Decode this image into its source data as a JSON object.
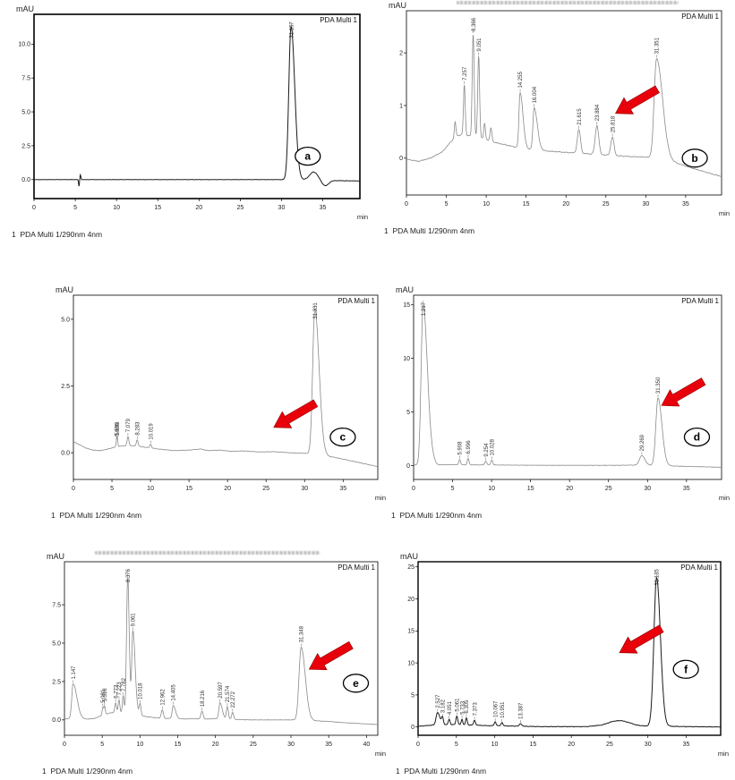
{
  "labels": {
    "y_unit": "mAU",
    "x_unit": "min",
    "detector": "PDA Multi 1",
    "channel_footer": "1  PDA Multi 1/290nm 4nm"
  },
  "colors": {
    "arrow": "#e8000b",
    "arrow_edge": "#8c0000",
    "frame": "#000000",
    "trace_dark": "#1a1a1a",
    "trace_gray": "#8a8a8a"
  },
  "chart_data": [
    {
      "letter": "a",
      "type": "line",
      "title": "",
      "ylabel": "mAU",
      "xlabel": "min",
      "detector": "PDA Multi 1",
      "footer": "1  PDA Multi 1/290nm 4nm",
      "xlim": [
        0,
        39.5
      ],
      "ylim": [
        -1.4,
        12.2
      ],
      "xticks": [
        0,
        5,
        10,
        15,
        20,
        25,
        30,
        35
      ],
      "xtick_labels": [
        "0",
        "5",
        "10",
        "15",
        "20",
        "25",
        "30",
        "35"
      ],
      "yticks": [
        0,
        2.5,
        5,
        7.5,
        10
      ],
      "ytick_labels": [
        "0.0",
        "2.5",
        "5.0",
        "7.5",
        "10.0"
      ],
      "grid": false,
      "trace_color": "#1a1a1a",
      "trace_width": 1.0,
      "frame_width": 1.6,
      "noise": 0.015,
      "baseline": [
        [
          0,
          0
        ],
        [
          30.2,
          0
        ],
        [
          33,
          -0.03
        ],
        [
          36,
          -0.07
        ],
        [
          39.5,
          -0.1
        ]
      ],
      "peaks": [
        {
          "t": 5.45,
          "h": -0.5,
          "w": 0.05
        },
        {
          "t": 5.62,
          "h": 0.35,
          "w": 0.06
        },
        {
          "t": 31.157,
          "h": 11.3,
          "wl": 0.27,
          "wr": 0.45,
          "label": "31.157"
        },
        {
          "t": 33.9,
          "h": 0.6,
          "w": 0.5
        },
        {
          "t": 35.3,
          "h": -0.4,
          "w": 0.4
        }
      ],
      "arrow": null,
      "letter_pos": [
        0.84,
        0.77
      ],
      "blurred_title": false
    },
    {
      "letter": "b",
      "type": "line",
      "title": "",
      "ylabel": "mAU",
      "xlabel": "min",
      "detector": "PDA Multi 1",
      "footer": "1  PDA Multi 1/290nm 4nm",
      "xlim": [
        0,
        39.5
      ],
      "ylim": [
        -0.7,
        2.8
      ],
      "xticks": [
        0,
        5,
        10,
        15,
        20,
        25,
        30,
        35
      ],
      "xtick_labels": [
        "0",
        "5",
        "10",
        "15",
        "20",
        "25",
        "30",
        "35"
      ],
      "yticks": [
        0,
        1,
        2
      ],
      "ytick_labels": [
        "0",
        "1",
        "2"
      ],
      "grid": false,
      "trace_color": "#8a8a8a",
      "trace_width": 0.8,
      "frame_width": 0.8,
      "noise": 0.01,
      "baseline": [
        [
          0,
          -0.02
        ],
        [
          1.5,
          -0.06
        ],
        [
          3,
          0
        ],
        [
          4.5,
          0.12
        ],
        [
          5.5,
          0.3
        ],
        [
          6.3,
          0.42
        ],
        [
          7,
          0.45
        ],
        [
          8,
          0.42
        ],
        [
          9.5,
          0.38
        ],
        [
          11,
          0.3
        ],
        [
          12.5,
          0.25
        ],
        [
          14,
          0.2
        ],
        [
          16,
          0.16
        ],
        [
          18,
          0.13
        ],
        [
          20,
          0.11
        ],
        [
          22,
          0.09
        ],
        [
          24,
          0.07
        ],
        [
          26,
          0.05
        ],
        [
          28,
          0.03
        ],
        [
          30,
          0.02
        ],
        [
          32,
          -0.02
        ],
        [
          34,
          -0.1
        ],
        [
          36,
          -0.2
        ],
        [
          39.5,
          -0.35
        ]
      ],
      "peaks": [
        {
          "t": 6.1,
          "h": 0.3,
          "w": 0.1
        },
        {
          "t": 7.257,
          "h": 0.95,
          "w": 0.11,
          "label": "7.257"
        },
        {
          "t": 8.366,
          "h": 1.95,
          "w": 0.12,
          "label": "8.366"
        },
        {
          "t": 9.051,
          "h": 1.55,
          "w": 0.12,
          "label": "9.051"
        },
        {
          "t": 9.8,
          "h": 0.3,
          "w": 0.1
        },
        {
          "t": 10.6,
          "h": 0.25,
          "w": 0.12
        },
        {
          "t": 14.255,
          "h": 1.05,
          "wl": 0.15,
          "wr": 0.35,
          "label": "14.255"
        },
        {
          "t": 16.004,
          "h": 0.8,
          "wl": 0.15,
          "wr": 0.4,
          "label": "16.004"
        },
        {
          "t": 21.615,
          "h": 0.45,
          "w": 0.2,
          "label": "21.615"
        },
        {
          "t": 23.884,
          "h": 0.55,
          "w": 0.22,
          "label": "23.884"
        },
        {
          "t": 25.818,
          "h": 0.35,
          "w": 0.2,
          "label": "25.818"
        },
        {
          "t": 31.351,
          "h": 1.9,
          "wl": 0.3,
          "wr": 0.75,
          "label": "31.351"
        }
      ],
      "arrow": {
        "tip_t": 26.2,
        "tip_val": 0.85,
        "angle_deg": 150
      },
      "letter_pos": [
        0.915,
        0.8
      ],
      "blurred_title": true
    },
    {
      "letter": "c",
      "type": "line",
      "title": "",
      "ylabel": "mAU",
      "xlabel": "min",
      "detector": "PDA Multi 1",
      "footer": "1  PDA Multi 1/290nm 4nm",
      "xlim": [
        0,
        39.5
      ],
      "ylim": [
        -1.0,
        5.9
      ],
      "xticks": [
        0,
        5,
        10,
        15,
        20,
        25,
        30,
        35
      ],
      "xtick_labels": [
        "0",
        "5",
        "10",
        "15",
        "20",
        "25",
        "30",
        "35"
      ],
      "yticks": [
        0,
        2.5,
        5
      ],
      "ytick_labels": [
        "0.0",
        "2.5",
        "5.0"
      ],
      "grid": false,
      "trace_color": "#8a8a8a",
      "trace_width": 0.8,
      "frame_width": 0.8,
      "noise": 0.01,
      "baseline": [
        [
          0,
          0.42
        ],
        [
          0.8,
          0.3
        ],
        [
          1.6,
          0.18
        ],
        [
          2.5,
          0.1
        ],
        [
          3.5,
          0.08
        ],
        [
          4.5,
          0.14
        ],
        [
          5.5,
          0.22
        ],
        [
          6.5,
          0.26
        ],
        [
          7.5,
          0.27
        ],
        [
          8.5,
          0.24
        ],
        [
          9.5,
          0.2
        ],
        [
          11,
          0.14
        ],
        [
          13,
          0.08
        ],
        [
          15,
          0.1
        ],
        [
          16.5,
          0.14
        ],
        [
          17.5,
          0.08
        ],
        [
          19,
          0.1
        ],
        [
          20.5,
          0.05
        ],
        [
          22,
          0.07
        ],
        [
          24,
          0.03
        ],
        [
          26,
          0.04
        ],
        [
          28,
          0.0
        ],
        [
          30,
          -0.02
        ],
        [
          32,
          -0.08
        ],
        [
          34,
          -0.18
        ],
        [
          36,
          -0.3
        ],
        [
          39.5,
          -0.52
        ]
      ],
      "peaks": [
        {
          "t": 5.606,
          "h": 0.22,
          "w": 0.07,
          "label": "5.606"
        },
        {
          "t": 5.698,
          "h": 0.26,
          "w": 0.07,
          "label": "5.698"
        },
        {
          "t": 7.079,
          "h": 0.34,
          "w": 0.11,
          "label": "7.079"
        },
        {
          "t": 8.283,
          "h": 0.24,
          "w": 0.11,
          "label": "8.283"
        },
        {
          "t": 10.019,
          "h": 0.14,
          "w": 0.11,
          "label": "10.019"
        },
        {
          "t": 31.331,
          "h": 5.45,
          "wl": 0.28,
          "wr": 0.55,
          "label": "31.331"
        }
      ],
      "arrow": {
        "tip_t": 26.0,
        "tip_val": 0.95,
        "angle_deg": 150
      },
      "letter_pos": [
        0.885,
        0.77
      ],
      "blurred_title": false
    },
    {
      "letter": "d",
      "type": "line",
      "title": "",
      "ylabel": "mAU",
      "xlabel": "min",
      "detector": "PDA Multi 1",
      "footer": "1  PDA Multi 1/290nm 4nm",
      "xlim": [
        0,
        39.5
      ],
      "ylim": [
        -1.3,
        15.9
      ],
      "xticks": [
        0,
        5,
        10,
        15,
        20,
        25,
        30,
        35
      ],
      "xtick_labels": [
        "0",
        "5",
        "10",
        "15",
        "20",
        "25",
        "30",
        "35"
      ],
      "yticks": [
        0,
        5,
        10,
        15
      ],
      "ytick_labels": [
        "0",
        "5",
        "10",
        "15"
      ],
      "grid": false,
      "trace_color": "#8a8a8a",
      "trace_width": 0.8,
      "frame_width": 0.8,
      "noise": 0.02,
      "baseline": [
        [
          0,
          0.05
        ],
        [
          3,
          0.06
        ],
        [
          5,
          0.08
        ],
        [
          8,
          0.06
        ],
        [
          10,
          0.05
        ],
        [
          14,
          0.03
        ],
        [
          18,
          0.02
        ],
        [
          22,
          0.02
        ],
        [
          26,
          0.02
        ],
        [
          28,
          0.04
        ],
        [
          30,
          0.02
        ],
        [
          32,
          -0.02
        ],
        [
          34,
          -0.06
        ],
        [
          36,
          -0.1
        ],
        [
          39.5,
          -0.16
        ]
      ],
      "peaks": [
        {
          "t": 1.217,
          "h": 15.0,
          "wl": 0.25,
          "wr": 0.55,
          "label": "1.217"
        },
        {
          "t": 2.4,
          "h": 0.3,
          "w": 0.3
        },
        {
          "t": 5.908,
          "h": 0.5,
          "w": 0.11,
          "label": "5.908"
        },
        {
          "t": 6.996,
          "h": 0.6,
          "w": 0.11,
          "label": "6.996"
        },
        {
          "t": 9.254,
          "h": 0.35,
          "w": 0.13,
          "label": "9.254"
        },
        {
          "t": 10.028,
          "h": 0.45,
          "w": 0.12,
          "label": "10.028"
        },
        {
          "t": 29.269,
          "h": 0.9,
          "wl": 0.3,
          "wr": 0.4,
          "label": "29.269"
        },
        {
          "t": 31.35,
          "h": 6.3,
          "wl": 0.28,
          "wr": 0.5,
          "label": "31.350"
        }
      ],
      "arrow": {
        "tip_t": 31.8,
        "tip_val": 5.6,
        "angle_deg": 150
      },
      "letter_pos": [
        0.92,
        0.77
      ],
      "blurred_title": false
    },
    {
      "letter": "e",
      "type": "line",
      "title": "",
      "ylabel": "mAU",
      "xlabel": "min",
      "detector": "PDA Multi 1",
      "footer": "1  PDA Multi 1/290nm 4nm",
      "xlim": [
        0,
        41.5
      ],
      "ylim": [
        -1.0,
        10.3
      ],
      "xticks": [
        0,
        5,
        10,
        15,
        20,
        25,
        30,
        35,
        40
      ],
      "xtick_labels": [
        "0",
        "5",
        "10",
        "15",
        "20",
        "25",
        "30",
        "35",
        "40"
      ],
      "yticks": [
        0,
        2.5,
        5,
        7.5
      ],
      "ytick_labels": [
        "0.0",
        "2.5",
        "5.0",
        "7.5"
      ],
      "grid": false,
      "trace_color": "#8a8a8a",
      "trace_width": 0.8,
      "frame_width": 0.8,
      "noise": 0.012,
      "baseline": [
        [
          0,
          0.05
        ],
        [
          0.7,
          0.1
        ],
        [
          2,
          0.1
        ],
        [
          3,
          0.05
        ],
        [
          4,
          0.1
        ],
        [
          5,
          0.3
        ],
        [
          6,
          0.45
        ],
        [
          7,
          0.5
        ],
        [
          8,
          0.45
        ],
        [
          9,
          0.4
        ],
        [
          10,
          0.3
        ],
        [
          11,
          0.2
        ],
        [
          12,
          0.15
        ],
        [
          13,
          0.1
        ],
        [
          14,
          0.1
        ],
        [
          15,
          0.08
        ],
        [
          16,
          0.06
        ],
        [
          17,
          0.08
        ],
        [
          18,
          0.06
        ],
        [
          19,
          0.06
        ],
        [
          20,
          0.08
        ],
        [
          21,
          0.06
        ],
        [
          22,
          0.05
        ],
        [
          23,
          0.02
        ],
        [
          25,
          0.0
        ],
        [
          27,
          0.0
        ],
        [
          29,
          0.0
        ],
        [
          31,
          0.0
        ],
        [
          33,
          -0.05
        ],
        [
          35,
          -0.1
        ],
        [
          37,
          -0.18
        ],
        [
          41.5,
          -0.3
        ]
      ],
      "peaks": [
        {
          "t": 1.147,
          "h": 2.25,
          "wl": 0.18,
          "wr": 0.5,
          "label": "1.147"
        },
        {
          "t": 5.081,
          "h": 0.5,
          "w": 0.09,
          "label": "5.081"
        },
        {
          "t": 5.318,
          "h": 0.55,
          "w": 0.09,
          "label": "5.318"
        },
        {
          "t": 6.773,
          "h": 0.62,
          "w": 0.11,
          "label": "6.773"
        },
        {
          "t": 7.223,
          "h": 0.82,
          "w": 0.11,
          "label": "7.223"
        },
        {
          "t": 7.782,
          "h": 1.1,
          "w": 0.11,
          "label": "7.782"
        },
        {
          "t": 8.376,
          "h": 8.9,
          "wl": 0.15,
          "wr": 0.2,
          "label": "8.376"
        },
        {
          "t": 9.061,
          "h": 5.4,
          "wl": 0.15,
          "wr": 0.3,
          "label": "9.061"
        },
        {
          "t": 10.018,
          "h": 0.75,
          "w": 0.12,
          "label": "10.018"
        },
        {
          "t": 12.962,
          "h": 0.55,
          "w": 0.14,
          "label": "12.962"
        },
        {
          "t": 14.405,
          "h": 0.85,
          "wl": 0.14,
          "wr": 0.3,
          "label": "14.405"
        },
        {
          "t": 18.216,
          "h": 0.5,
          "w": 0.15,
          "label": "18.216"
        },
        {
          "t": 20.597,
          "h": 1.05,
          "wl": 0.15,
          "wr": 0.3,
          "label": "20.597"
        },
        {
          "t": 21.574,
          "h": 0.8,
          "w": 0.13,
          "label": "21.574"
        },
        {
          "t": 22.272,
          "h": 0.45,
          "w": 0.13,
          "label": "22.272"
        },
        {
          "t": 31.348,
          "h": 4.75,
          "wl": 0.28,
          "wr": 0.55,
          "label": "31.348"
        }
      ],
      "arrow": {
        "tip_t": 32.4,
        "tip_val": 3.3,
        "angle_deg": 150
      },
      "letter_pos": [
        0.93,
        0.7
      ],
      "blurred_title": true
    },
    {
      "letter": "f",
      "type": "line",
      "title": "",
      "ylabel": "mAU",
      "xlabel": "min",
      "detector": "PDA Multi 1",
      "footer": "1  PDA Multi 1/290nm 4nm",
      "xlim": [
        0,
        39.5
      ],
      "ylim": [
        -1.3,
        25.8
      ],
      "xticks": [
        0,
        5,
        10,
        15,
        20,
        25,
        30,
        35
      ],
      "xtick_labels": [
        "0",
        "5",
        "10",
        "15",
        "20",
        "25",
        "30",
        "35"
      ],
      "yticks": [
        0,
        5,
        10,
        15,
        20,
        25
      ],
      "ytick_labels": [
        "0",
        "5",
        "10",
        "15",
        "20",
        "25"
      ],
      "grid": false,
      "trace_color": "#1a1a1a",
      "trace_width": 1.0,
      "frame_width": 1.4,
      "noise": 0.05,
      "baseline": [
        [
          0,
          0.1
        ],
        [
          1,
          0.2
        ],
        [
          2,
          0.3
        ],
        [
          3,
          0.4
        ],
        [
          4,
          0.3
        ],
        [
          5,
          0.4
        ],
        [
          6,
          0.3
        ],
        [
          7,
          0.3
        ],
        [
          8,
          0.25
        ],
        [
          9,
          0.2
        ],
        [
          10,
          0.2
        ],
        [
          12,
          0.15
        ],
        [
          14,
          0.1
        ],
        [
          16,
          0.05
        ],
        [
          18,
          0.05
        ],
        [
          20,
          0.05
        ],
        [
          22,
          0.05
        ],
        [
          24,
          0.3
        ],
        [
          25.5,
          0.9
        ],
        [
          26.5,
          1.0
        ],
        [
          27.5,
          0.7
        ],
        [
          28.5,
          0.3
        ],
        [
          29.5,
          0.15
        ],
        [
          33,
          0.1
        ],
        [
          35,
          0.05
        ],
        [
          39.5,
          0.0
        ]
      ],
      "peaks": [
        {
          "t": 2.527,
          "h": 1.9,
          "wl": 0.18,
          "wr": 0.3,
          "label": "2.527"
        },
        {
          "t": 3.182,
          "h": 1.1,
          "w": 0.12,
          "label": "3.182"
        },
        {
          "t": 4.051,
          "h": 0.9,
          "w": 0.12,
          "label": "4.051"
        },
        {
          "t": 5.061,
          "h": 1.3,
          "w": 0.12,
          "label": "5.061"
        },
        {
          "t": 5.733,
          "h": 0.9,
          "w": 0.1,
          "label": "5.733"
        },
        {
          "t": 6.305,
          "h": 1.1,
          "w": 0.11,
          "label": "6.305"
        },
        {
          "t": 7.373,
          "h": 0.75,
          "w": 0.12,
          "label": "7.373"
        },
        {
          "t": 10.067,
          "h": 0.6,
          "w": 0.12,
          "label": "10.067"
        },
        {
          "t": 10.951,
          "h": 0.5,
          "w": 0.12,
          "label": "10.951"
        },
        {
          "t": 13.387,
          "h": 0.4,
          "w": 0.15,
          "label": "13.387"
        },
        {
          "t": 31.135,
          "h": 23.2,
          "wl": 0.35,
          "wr": 0.5,
          "label": "31.135"
        }
      ],
      "arrow": {
        "tip_t": 26.3,
        "tip_val": 11.6,
        "angle_deg": 150
      },
      "letter_pos": [
        0.885,
        0.62
      ],
      "blurred_title": false
    }
  ]
}
